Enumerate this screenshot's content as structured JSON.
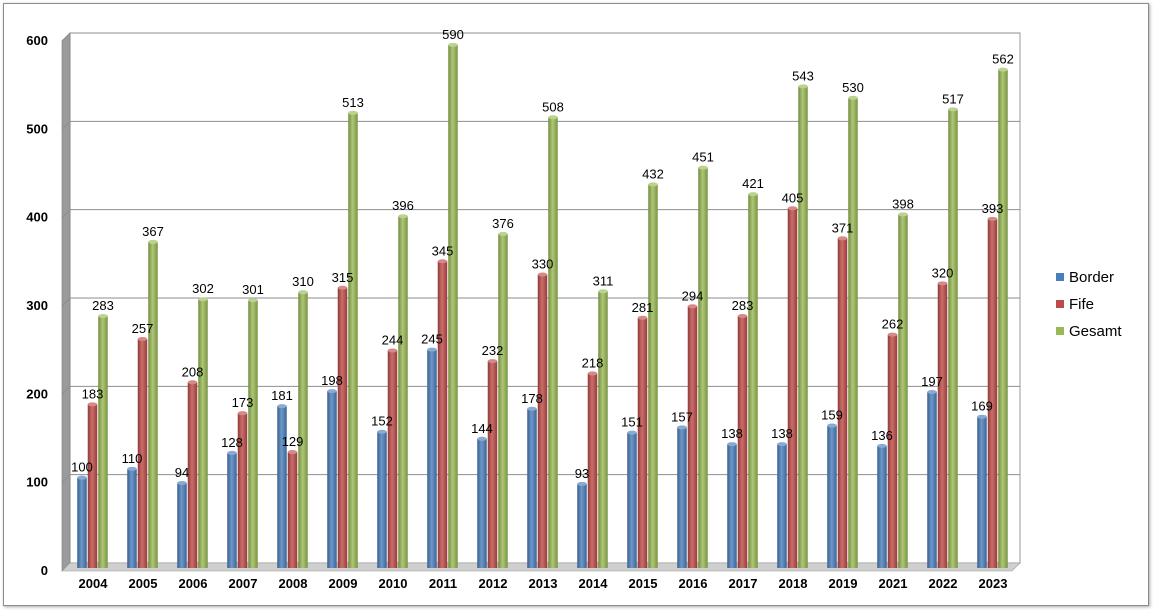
{
  "chart_data": {
    "type": "bar",
    "categories": [
      "2004",
      "2005",
      "2006",
      "2007",
      "2008",
      "2009",
      "2010",
      "2011",
      "2012",
      "2013",
      "2014",
      "2015",
      "2016",
      "2017",
      "2018",
      "2019",
      "2021",
      "2022",
      "2023"
    ],
    "series": [
      {
        "name": "Border",
        "color": "#4a7ebb",
        "values": [
          100,
          110,
          94,
          128,
          181,
          198,
          152,
          245,
          144,
          178,
          93,
          151,
          157,
          138,
          138,
          159,
          136,
          197,
          169
        ]
      },
      {
        "name": "Fife",
        "color": "#be4b48",
        "values": [
          183,
          257,
          208,
          173,
          129,
          315,
          244,
          345,
          232,
          330,
          218,
          281,
          294,
          283,
          405,
          371,
          262,
          320,
          393
        ]
      },
      {
        "name": "Gesamt",
        "color": "#98b954",
        "values": [
          283,
          367,
          302,
          301,
          310,
          513,
          396,
          590,
          376,
          508,
          311,
          432,
          451,
          421,
          543,
          530,
          398,
          517,
          562
        ]
      }
    ],
    "ylim": [
      0,
      600
    ],
    "yticks": [
      0,
      100,
      200,
      300,
      400,
      500,
      600
    ],
    "grid": true,
    "legend": "right"
  }
}
